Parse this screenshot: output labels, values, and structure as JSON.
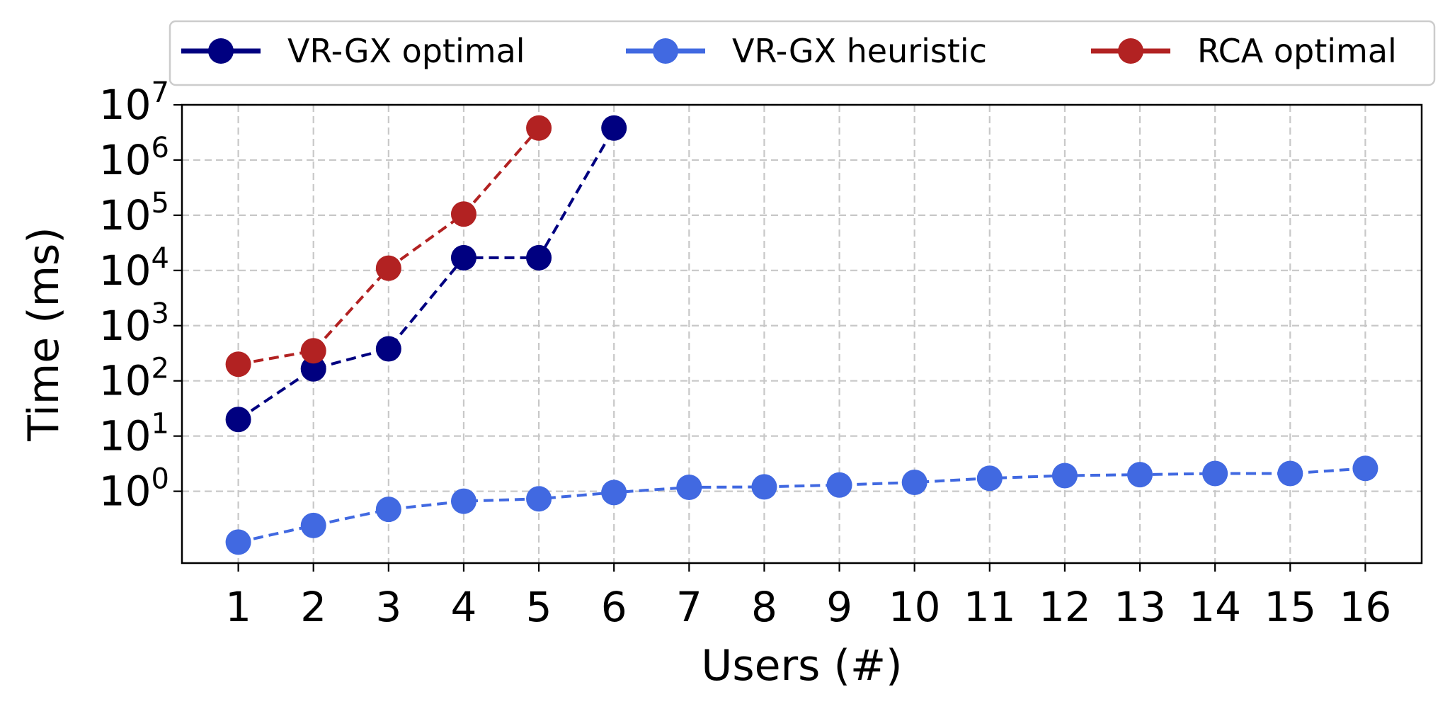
{
  "chart_data": {
    "type": "line",
    "xlabel": "Users (#)",
    "ylabel": "Time (ms)",
    "y_scale": "log",
    "ylim": [
      0.05,
      10000000
    ],
    "xlim": [
      0.25,
      16.75
    ],
    "x_ticks": [
      1,
      2,
      3,
      4,
      5,
      6,
      7,
      8,
      9,
      10,
      11,
      12,
      13,
      14,
      15,
      16
    ],
    "y_ticks": [
      {
        "value": 1,
        "base": "10",
        "exp": "0"
      },
      {
        "value": 10,
        "base": "10",
        "exp": "1"
      },
      {
        "value": 100,
        "base": "10",
        "exp": "2"
      },
      {
        "value": 1000,
        "base": "10",
        "exp": "3"
      },
      {
        "value": 10000,
        "base": "10",
        "exp": "4"
      },
      {
        "value": 100000,
        "base": "10",
        "exp": "5"
      },
      {
        "value": 1000000,
        "base": "10",
        "exp": "6"
      },
      {
        "value": 10000000,
        "base": "10",
        "exp": "7"
      }
    ],
    "grid": true,
    "legend_position": "top",
    "series": [
      {
        "name": "VR-GX optimal",
        "color": "#000080",
        "x": [
          1,
          2,
          3,
          4,
          5,
          6
        ],
        "y": [
          20,
          165,
          380,
          17000,
          17000,
          3800000
        ]
      },
      {
        "name": "VR-GX heuristic",
        "color": "#4169E1",
        "x": [
          1,
          2,
          3,
          4,
          5,
          6,
          7,
          8,
          9,
          10,
          11,
          12,
          13,
          14,
          15,
          16
        ],
        "y": [
          0.12,
          0.24,
          0.47,
          0.66,
          0.73,
          0.95,
          1.18,
          1.2,
          1.3,
          1.45,
          1.72,
          1.92,
          2.0,
          2.1,
          2.1,
          2.6
        ]
      },
      {
        "name": "RCA optimal",
        "color": "#B22222",
        "x": [
          1,
          2,
          3,
          4,
          5
        ],
        "y": [
          200,
          350,
          11000,
          105000,
          3800000
        ]
      }
    ]
  }
}
